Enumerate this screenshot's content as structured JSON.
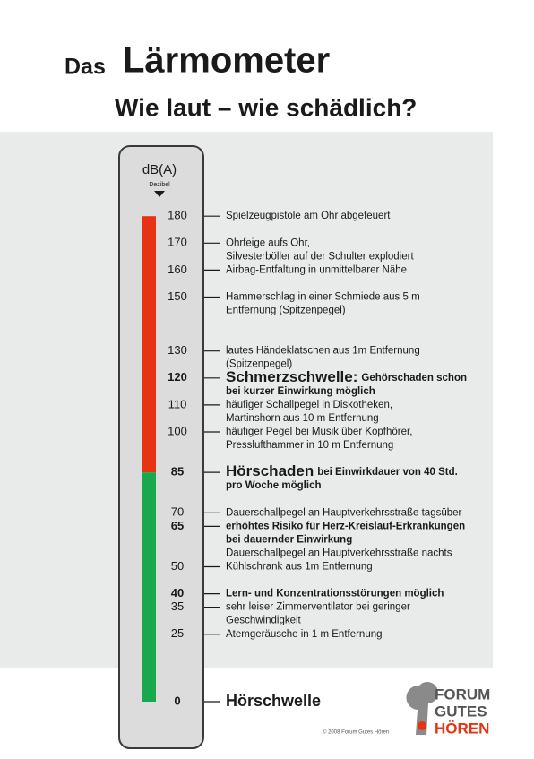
{
  "header": {
    "title_small": "Das",
    "title": "Lärmometer",
    "subtitle": "Wie laut – wie schädlich?"
  },
  "scale": {
    "unit": "dB(A)",
    "unit_sub": "Dezibel",
    "entries": [
      {
        "value": 180,
        "lines": [
          "Spielzeugpistole am Ohr abgefeuert"
        ]
      },
      {
        "value": 170,
        "lines": [
          "Ohrfeige aufs Ohr,",
          "Silvesterböller auf der Schulter explodiert"
        ]
      },
      {
        "value": 160,
        "lines": [
          "Airbag-Entfaltung in unmittelbarer Nähe"
        ]
      },
      {
        "value": 150,
        "lines": [
          "Hammerschlag in einer Schmiede aus 5 m",
          "Entfernung (Spitzenpegel)"
        ]
      },
      {
        "value": 130,
        "lines": [
          "lautes Händeklatschen aus 1m Entfernung",
          "(Spitzenpegel)"
        ]
      },
      {
        "value": 120,
        "emphasis": true,
        "heading": "Schmerzschwelle:",
        "lines": [
          "Gehörschaden schon",
          "bei kurzer Einwirkung möglich"
        ]
      },
      {
        "value": 110,
        "lines": [
          "häufiger Schallpegel in Diskotheken,",
          "Martinshorn aus 10 m Entfernung"
        ]
      },
      {
        "value": 100,
        "lines": [
          "häufiger Pegel bei Musik über Kopfhörer,",
          "Presslufthammer in 10 m Entfernung"
        ]
      },
      {
        "value": 85,
        "emphasis": true,
        "heading": "Hörschaden",
        "lines": [
          "bei Einwirkdauer von 40 Std.",
          "pro Woche möglich"
        ]
      },
      {
        "value": 70,
        "lines": [
          "Dauerschallpegel an Hauptverkehrsstraße tagsüber"
        ]
      },
      {
        "value": 65,
        "emphasis": true,
        "lines": [
          "erhöhtes Risiko für Herz-Kreislauf-Erkrankungen",
          "bei dauernder Einwirkung"
        ],
        "extra": "Dauerschallpegel an Hauptverkehrsstraße nachts"
      },
      {
        "value": 50,
        "lines": [
          "Kühlschrank aus 1m Entfernung"
        ]
      },
      {
        "value": 40,
        "emphasis": true,
        "lines": [
          "Lern- und Konzentrationsstörungen möglich"
        ]
      },
      {
        "value": 35,
        "lines": [
          "sehr leiser Zimmerventilator bei geringer",
          "Geschwindigkeit"
        ]
      },
      {
        "value": 25,
        "lines": [
          "Atemgeräusche in 1 m Entfernung"
        ]
      },
      {
        "value": 0,
        "emphasis": true,
        "heading": "Hörschwelle",
        "lines": []
      }
    ]
  },
  "logo": {
    "line1": "FORUM",
    "line2": "GUTES",
    "line3": "HÖREN"
  },
  "copyright": "© 2008 Forum Gutes Hören"
}
